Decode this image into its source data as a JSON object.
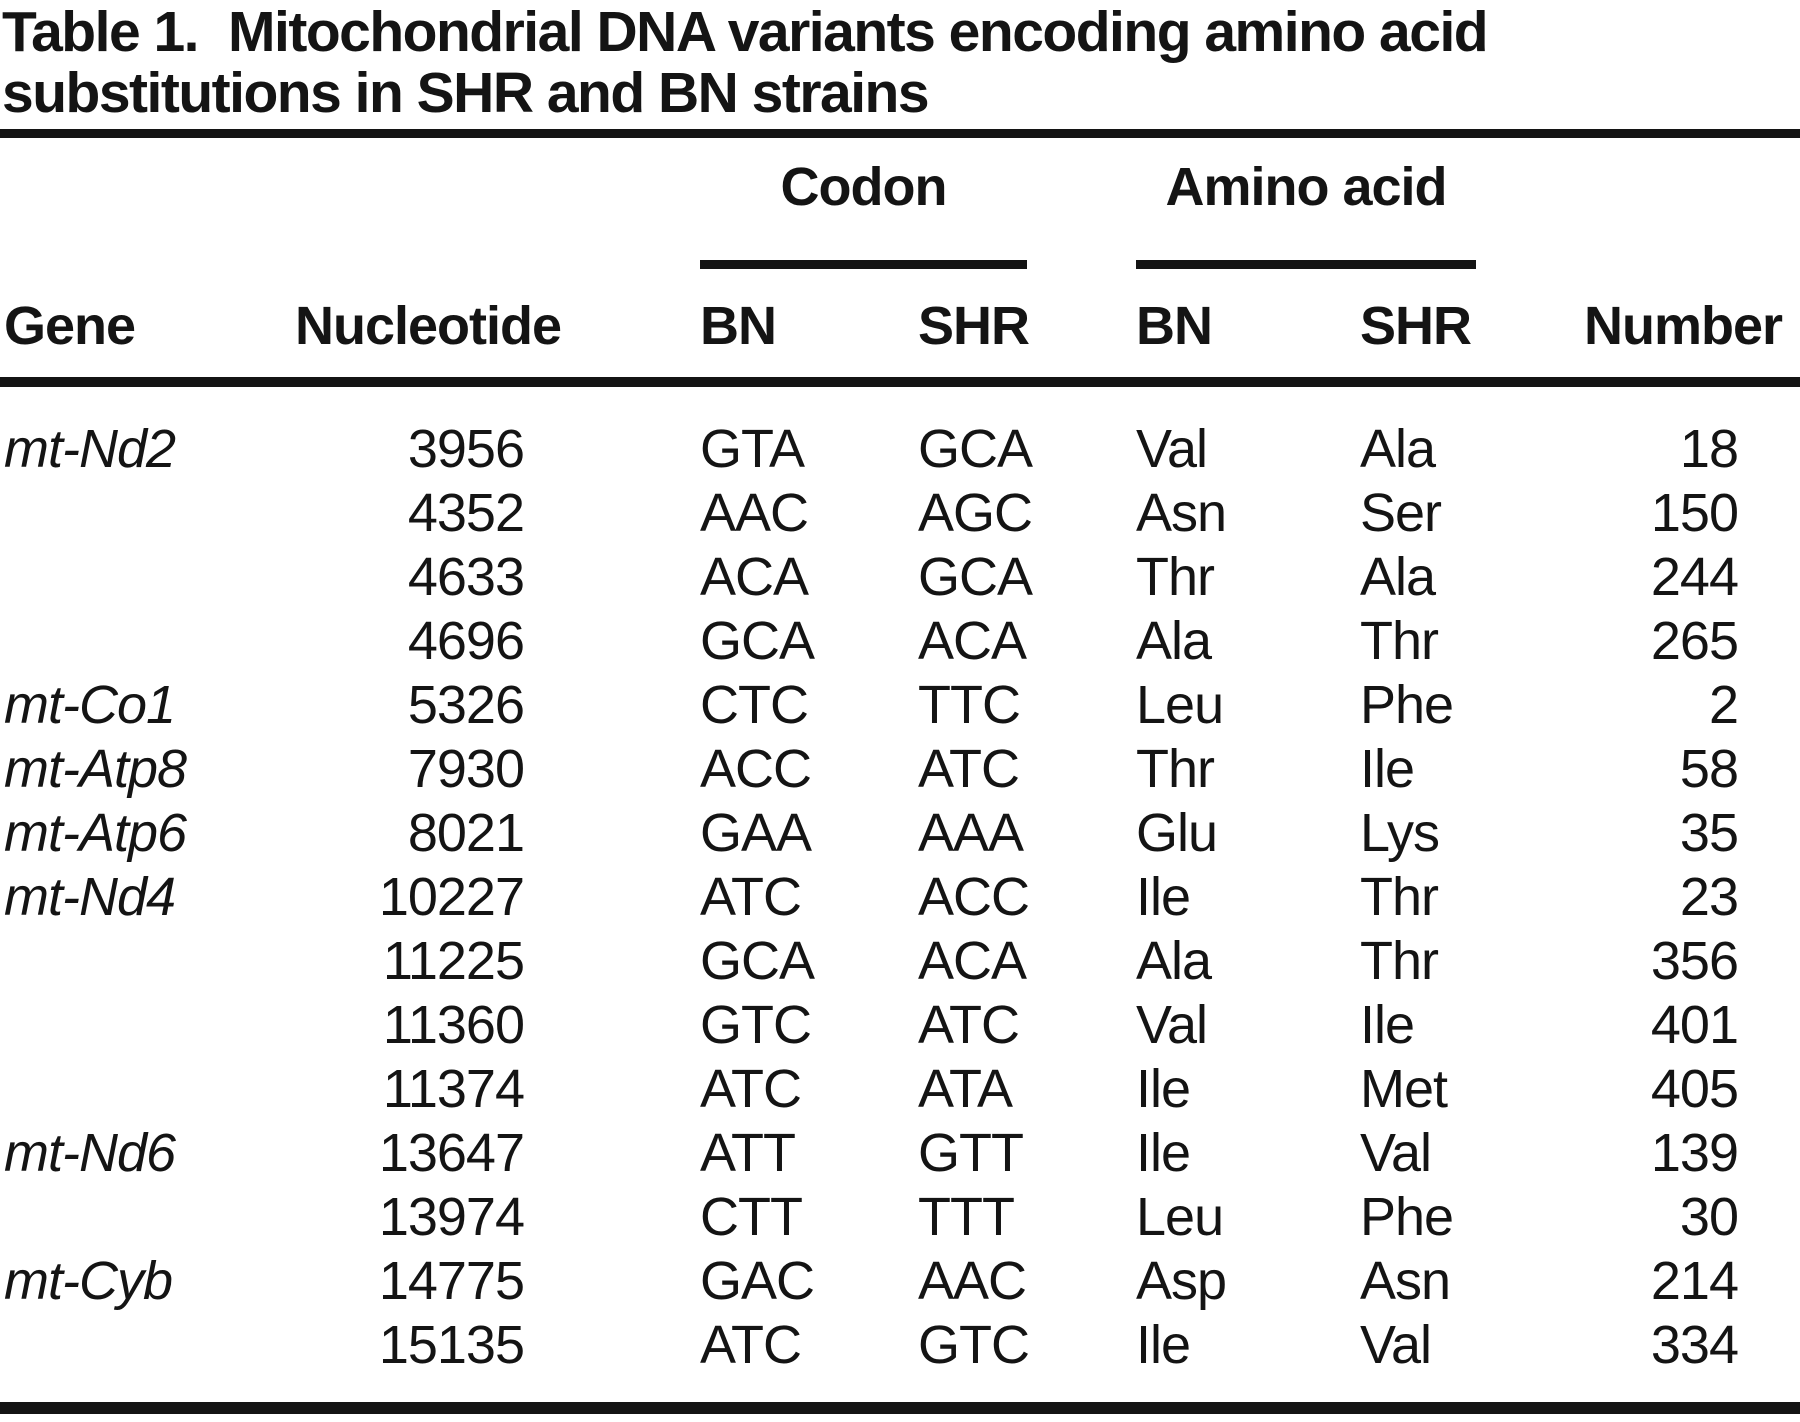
{
  "page": {
    "background": "#ffffff",
    "text_color": "#141414",
    "rule_color": "#141414"
  },
  "title": {
    "label": "Table 1.",
    "line1": "Mitochondrial DNA variants encoding amino acid",
    "line2": "substitutions in SHR and BN strains"
  },
  "table": {
    "groups": {
      "codon": "Codon",
      "amino_acid": "Amino acid"
    },
    "headers": {
      "gene": "Gene",
      "nucleotide": "Nucleotide",
      "codon_bn": "BN",
      "codon_shr": "SHR",
      "aa_bn": "BN",
      "aa_shr": "SHR",
      "number": "Number"
    },
    "rows": [
      {
        "gene": "mt-Nd2",
        "nucleotide": "3956",
        "codon_bn": "GTA",
        "codon_shr": "GCA",
        "aa_bn": "Val",
        "aa_shr": "Ala",
        "number": "18"
      },
      {
        "gene": "",
        "nucleotide": "4352",
        "codon_bn": "AAC",
        "codon_shr": "AGC",
        "aa_bn": "Asn",
        "aa_shr": "Ser",
        "number": "150"
      },
      {
        "gene": "",
        "nucleotide": "4633",
        "codon_bn": "ACA",
        "codon_shr": "GCA",
        "aa_bn": "Thr",
        "aa_shr": "Ala",
        "number": "244"
      },
      {
        "gene": "",
        "nucleotide": "4696",
        "codon_bn": "GCA",
        "codon_shr": "ACA",
        "aa_bn": "Ala",
        "aa_shr": "Thr",
        "number": "265"
      },
      {
        "gene": "mt-Co1",
        "nucleotide": "5326",
        "codon_bn": "CTC",
        "codon_shr": "TTC",
        "aa_bn": "Leu",
        "aa_shr": "Phe",
        "number": "2"
      },
      {
        "gene": "mt-Atp8",
        "nucleotide": "7930",
        "codon_bn": "ACC",
        "codon_shr": "ATC",
        "aa_bn": "Thr",
        "aa_shr": "Ile",
        "number": "58"
      },
      {
        "gene": "mt-Atp6",
        "nucleotide": "8021",
        "codon_bn": "GAA",
        "codon_shr": "AAA",
        "aa_bn": "Glu",
        "aa_shr": "Lys",
        "number": "35"
      },
      {
        "gene": "mt-Nd4",
        "nucleotide": "10227",
        "codon_bn": "ATC",
        "codon_shr": "ACC",
        "aa_bn": "Ile",
        "aa_shr": "Thr",
        "number": "23"
      },
      {
        "gene": "",
        "nucleotide": "11225",
        "codon_bn": "GCA",
        "codon_shr": "ACA",
        "aa_bn": "Ala",
        "aa_shr": "Thr",
        "number": "356"
      },
      {
        "gene": "",
        "nucleotide": "11360",
        "codon_bn": "GTC",
        "codon_shr": "ATC",
        "aa_bn": "Val",
        "aa_shr": "Ile",
        "number": "401"
      },
      {
        "gene": "",
        "nucleotide": "11374",
        "codon_bn": "ATC",
        "codon_shr": "ATA",
        "aa_bn": "Ile",
        "aa_shr": "Met",
        "number": "405"
      },
      {
        "gene": "mt-Nd6",
        "nucleotide": "13647",
        "codon_bn": "ATT",
        "codon_shr": "GTT",
        "aa_bn": "Ile",
        "aa_shr": "Val",
        "number": "139"
      },
      {
        "gene": "",
        "nucleotide": "13974",
        "codon_bn": "CTT",
        "codon_shr": "TTT",
        "aa_bn": "Leu",
        "aa_shr": "Phe",
        "number": "30"
      },
      {
        "gene": "mt-Cyb",
        "nucleotide": "14775",
        "codon_bn": "GAC",
        "codon_shr": "AAC",
        "aa_bn": "Asp",
        "aa_shr": "Asn",
        "number": "214"
      },
      {
        "gene": "",
        "nucleotide": "15135",
        "codon_bn": "ATC",
        "codon_shr": "GTC",
        "aa_bn": "Ile",
        "aa_shr": "Val",
        "number": "334"
      }
    ]
  }
}
